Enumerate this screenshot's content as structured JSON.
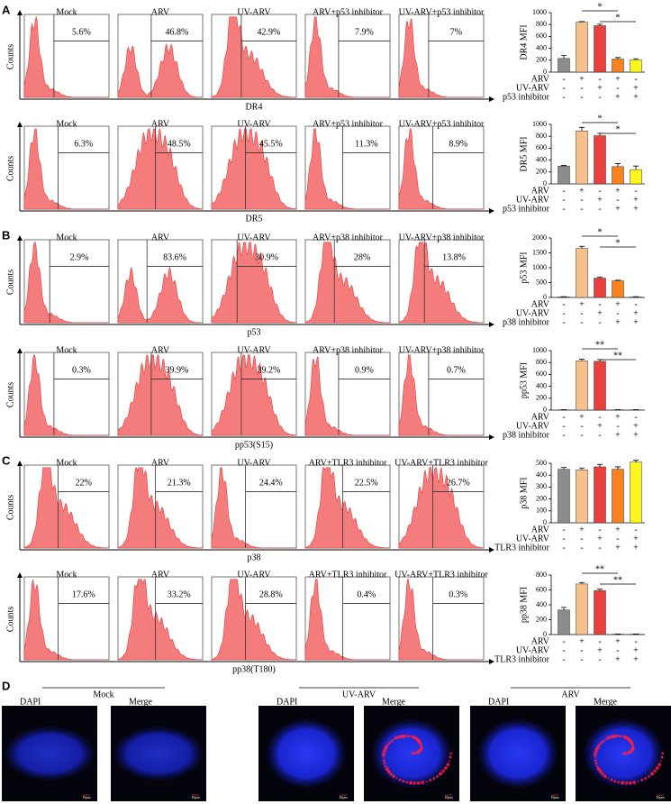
{
  "panel_labels": [
    "A",
    "B",
    "C",
    "D"
  ],
  "flow_rows": [
    {
      "y_label": "Counts",
      "x_label": "DR4",
      "plots": [
        {
          "title": "Mock",
          "percent": "5.6%"
        },
        {
          "title": "ARV",
          "percent": "46.8%"
        },
        {
          "title": "UV-ARV",
          "percent": "42.9%"
        },
        {
          "title": "ARV+p53 inhibitor",
          "percent": "7.9%"
        },
        {
          "title": "UV-ARV+p53 inhibitor",
          "percent": "7%"
        }
      ]
    },
    {
      "y_label": "Counts",
      "x_label": "DR5",
      "plots": [
        {
          "title": "Mock",
          "percent": "6.3%"
        },
        {
          "title": "ARV",
          "percent": "48.5%"
        },
        {
          "title": "UV-ARV",
          "percent": "45.5%"
        },
        {
          "title": "ARV+p53 inhibitor",
          "percent": "11.3%"
        },
        {
          "title": "UV-ARV+p53 inhibitor",
          "percent": "8.9%"
        }
      ]
    },
    {
      "y_label": "Counts",
      "x_label": "p53",
      "plots": [
        {
          "title": "Mock",
          "percent": "2.9%"
        },
        {
          "title": "ARV",
          "percent": "83.6%"
        },
        {
          "title": "UV-ARV",
          "percent": "30.9%"
        },
        {
          "title": "ARV+p38 inhibitor",
          "percent": "28%"
        },
        {
          "title": "UV-ARV+p38 inhibitor",
          "percent": "13.8%"
        }
      ]
    },
    {
      "y_label": "Counts",
      "x_label": "pp53(S15)",
      "plots": [
        {
          "title": "Mock",
          "percent": "0.3%"
        },
        {
          "title": "ARV",
          "percent": "39.9%"
        },
        {
          "title": "UV-ARV",
          "percent": "39.2%"
        },
        {
          "title": "ARV+p38 inhibitor",
          "percent": "0.9%"
        },
        {
          "title": "UV-ARV+p38 inhibitor",
          "percent": "0.7%"
        }
      ]
    },
    {
      "y_label": "Counts",
      "x_label": "p38",
      "plots": [
        {
          "title": "Mock",
          "percent": "22%"
        },
        {
          "title": "ARV",
          "percent": "21.3%"
        },
        {
          "title": "UV-ARV",
          "percent": "24.4%"
        },
        {
          "title": "ARV+TLR3 inhibitor",
          "percent": "22.5%"
        },
        {
          "title": "UV-ARV+TLR3 inhibitor",
          "percent": "26.7%"
        }
      ]
    },
    {
      "y_label": "Counts",
      "x_label": "pp38(T180)",
      "plots": [
        {
          "title": "Mock",
          "percent": "17.6%"
        },
        {
          "title": "ARV",
          "percent": "33.2%"
        },
        {
          "title": "UV-ARV",
          "percent": "28.8%"
        },
        {
          "title": "ARV+TLR3 inhibitor",
          "percent": "0.4%"
        },
        {
          "title": "UV-ARV+TLR3 inhibitor",
          "percent": "0.3%"
        }
      ]
    }
  ],
  "chart_data": [
    {
      "type": "bar",
      "ylabel": "DR4 MFI",
      "values": [
        230,
        840,
        780,
        220,
        205
      ],
      "errors": [
        50,
        10,
        25,
        25,
        20
      ],
      "colors": [
        "#8c8c8c",
        "#f6c28b",
        "#e8413d",
        "#f7821f",
        "#fdf51f"
      ],
      "ylim": [
        0,
        1000
      ],
      "yticks": [
        0,
        200,
        400,
        600,
        800,
        1000
      ],
      "conditions": [
        {
          "name": "ARV",
          "signs": [
            "-",
            "+",
            "-",
            "+",
            "-"
          ]
        },
        {
          "name": "UV-ARV",
          "signs": [
            "-",
            "-",
            "+",
            "-",
            "+"
          ]
        },
        {
          "name": "p53 inhibitor",
          "signs": [
            "-",
            "-",
            "-",
            "+",
            "+"
          ]
        }
      ],
      "significance": [
        "*",
        "*"
      ]
    },
    {
      "type": "bar",
      "ylabel": "DR5 MFI",
      "values": [
        300,
        890,
        810,
        290,
        240
      ],
      "errors": [
        10,
        60,
        40,
        50,
        60
      ],
      "colors": [
        "#8c8c8c",
        "#f6c28b",
        "#e8413d",
        "#f7821f",
        "#fdf51f"
      ],
      "ylim": [
        0,
        1000
      ],
      "yticks": [
        0,
        200,
        400,
        600,
        800,
        1000
      ],
      "conditions": [
        {
          "name": "ARV",
          "signs": [
            "-",
            "+",
            "-",
            "+",
            "-"
          ]
        },
        {
          "name": "UV-ARV",
          "signs": [
            "-",
            "-",
            "+",
            "-",
            "+"
          ]
        },
        {
          "name": "p53 inhibitor",
          "signs": [
            "-",
            "-",
            "-",
            "+",
            "+"
          ]
        }
      ],
      "significance": [
        "*",
        "*"
      ]
    },
    {
      "type": "bar",
      "ylabel": "p53 MFI",
      "values": [
        20,
        1650,
        650,
        560,
        20
      ],
      "errors": [
        5,
        70,
        40,
        20,
        5
      ],
      "colors": [
        "#8c8c8c",
        "#f6c28b",
        "#e8413d",
        "#f7821f",
        "#fdf51f"
      ],
      "ylim": [
        0,
        2000
      ],
      "yticks": [
        0,
        500,
        1000,
        1500,
        2000
      ],
      "conditions": [
        {
          "name": "ARV",
          "signs": [
            "-",
            "+",
            "-",
            "+",
            "-"
          ]
        },
        {
          "name": "UV-ARV",
          "signs": [
            "-",
            "-",
            "+",
            "-",
            "+"
          ]
        },
        {
          "name": "p38 inhibitor",
          "signs": [
            "-",
            "-",
            "-",
            "+",
            "+"
          ]
        }
      ],
      "significance": [
        "*",
        "*"
      ]
    },
    {
      "type": "bar",
      "ylabel": "pp53 MFI",
      "values": [
        5,
        830,
        820,
        5,
        5
      ],
      "errors": [
        2,
        25,
        30,
        2,
        2
      ],
      "colors": [
        "#8c8c8c",
        "#f6c28b",
        "#e8413d",
        "#f7821f",
        "#fdf51f"
      ],
      "ylim": [
        0,
        1000
      ],
      "yticks": [
        0,
        200,
        400,
        600,
        800,
        1000
      ],
      "conditions": [
        {
          "name": "ARV",
          "signs": [
            "-",
            "+",
            "-",
            "+",
            "-"
          ]
        },
        {
          "name": "UV-ARV",
          "signs": [
            "-",
            "-",
            "+",
            "-",
            "+"
          ]
        },
        {
          "name": "p38 inhibitor",
          "signs": [
            "-",
            "-",
            "-",
            "+",
            "+"
          ]
        }
      ],
      "significance": [
        "**",
        "**"
      ]
    },
    {
      "type": "bar",
      "ylabel": "p38 MFI",
      "values": [
        450,
        445,
        470,
        450,
        510
      ],
      "errors": [
        15,
        15,
        20,
        20,
        15
      ],
      "colors": [
        "#8c8c8c",
        "#f6c28b",
        "#e8413d",
        "#f7821f",
        "#fdf51f"
      ],
      "ylim": [
        0,
        500
      ],
      "yticks": [
        0,
        100,
        200,
        300,
        400,
        500
      ],
      "conditions": [
        {
          "name": "ARV",
          "signs": [
            "-",
            "+",
            "-",
            "+",
            "-"
          ]
        },
        {
          "name": "UV-ARV",
          "signs": [
            "-",
            "-",
            "+",
            "-",
            "+"
          ]
        },
        {
          "name": "TLR3 inhibitor",
          "signs": [
            "-",
            "-",
            "-",
            "+",
            "+"
          ]
        }
      ]
    },
    {
      "type": "bar",
      "ylabel": "pp38 MFI",
      "values": [
        330,
        680,
        590,
        5,
        5
      ],
      "errors": [
        35,
        20,
        20,
        2,
        2
      ],
      "colors": [
        "#8c8c8c",
        "#f6c28b",
        "#e8413d",
        "#f7821f",
        "#fdf51f"
      ],
      "ylim": [
        0,
        800
      ],
      "yticks": [
        0,
        200,
        400,
        600,
        800
      ],
      "conditions": [
        {
          "name": "ARV",
          "signs": [
            "-",
            "+",
            "-",
            "+",
            "-"
          ]
        },
        {
          "name": "UV-ARV",
          "signs": [
            "-",
            "-",
            "+",
            "-",
            "+"
          ]
        },
        {
          "name": "TLR3 inhibitor",
          "signs": [
            "-",
            "-",
            "-",
            "+",
            "+"
          ]
        }
      ],
      "significance": [
        "**",
        "**"
      ]
    }
  ],
  "panel_d": {
    "groups": [
      {
        "title": "Mock",
        "images": [
          "DAPI",
          "Merge"
        ]
      },
      {
        "title": "UV-ARV",
        "images": [
          "DAPI",
          "Merge"
        ]
      },
      {
        "title": "ARV",
        "images": [
          "DAPI",
          "Merge"
        ]
      }
    ],
    "scale_bar": "10μm"
  }
}
